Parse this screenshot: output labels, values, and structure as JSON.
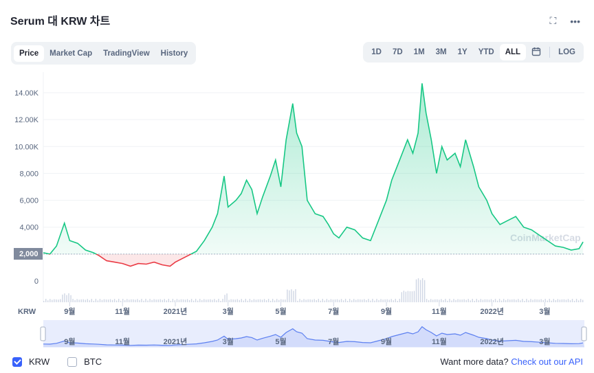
{
  "header": {
    "title": "Serum 대 KRW 차트",
    "expand_icon": "expand-icon",
    "more_icon": "more-icon"
  },
  "tabs": [
    "Price",
    "Market Cap",
    "TradingView",
    "History"
  ],
  "active_tab": "Price",
  "ranges": [
    "1D",
    "7D",
    "1M",
    "3M",
    "1Y",
    "YTD",
    "ALL"
  ],
  "active_range": "ALL",
  "calendar_icon": "calendar-icon",
  "log_label": "LOG",
  "watermark": "CoinMarketCap",
  "legend": {
    "krw": "KRW",
    "btc": "BTC"
  },
  "more_data": {
    "prefix": "Want more data?",
    "link": "Check out our API"
  },
  "axis_label": "KRW",
  "current_price_label": "2,000",
  "chart_data": {
    "type": "area",
    "y_ticks": [
      "0",
      "2,000",
      "4,000",
      "6,000",
      "8,000",
      "10.00K",
      "12.00K",
      "14.00K"
    ],
    "y_tick_values": [
      0,
      2000,
      4000,
      6000,
      8000,
      10000,
      12000,
      14000
    ],
    "x_ticks": [
      "9월",
      "11월",
      "2021년",
      "3월",
      "5월",
      "7월",
      "9월",
      "11월",
      "2022년",
      "3월"
    ],
    "x_tick_positions_month_index": [
      1,
      3,
      5,
      7,
      9,
      11,
      13,
      15,
      17,
      19
    ],
    "baseline": 2000,
    "colors": {
      "up": "#16c784",
      "down": "#ea3943",
      "navigator": "#5b7ff0"
    },
    "series": [
      {
        "name": "KRW",
        "points": [
          [
            0.0,
            2100
          ],
          [
            0.25,
            2000
          ],
          [
            0.5,
            2600
          ],
          [
            0.8,
            4300
          ],
          [
            1.0,
            3000
          ],
          [
            1.3,
            2800
          ],
          [
            1.6,
            2300
          ],
          [
            1.9,
            2100
          ],
          [
            2.1,
            1900
          ],
          [
            2.4,
            1500
          ],
          [
            2.7,
            1400
          ],
          [
            3.0,
            1300
          ],
          [
            3.3,
            1100
          ],
          [
            3.6,
            1300
          ],
          [
            3.9,
            1250
          ],
          [
            4.2,
            1400
          ],
          [
            4.5,
            1200
          ],
          [
            4.8,
            1100
          ],
          [
            5.0,
            1400
          ],
          [
            5.2,
            1600
          ],
          [
            5.5,
            1900
          ],
          [
            5.8,
            2200
          ],
          [
            6.1,
            3000
          ],
          [
            6.4,
            4000
          ],
          [
            6.6,
            5000
          ],
          [
            6.85,
            7800
          ],
          [
            7.0,
            5500
          ],
          [
            7.3,
            6000
          ],
          [
            7.5,
            6500
          ],
          [
            7.7,
            7500
          ],
          [
            7.9,
            6800
          ],
          [
            8.1,
            5000
          ],
          [
            8.3,
            6200
          ],
          [
            8.6,
            7800
          ],
          [
            8.8,
            9000
          ],
          [
            9.0,
            7000
          ],
          [
            9.2,
            10500
          ],
          [
            9.45,
            13200
          ],
          [
            9.6,
            11000
          ],
          [
            9.8,
            10000
          ],
          [
            10.0,
            6000
          ],
          [
            10.3,
            5000
          ],
          [
            10.6,
            4800
          ],
          [
            10.8,
            4200
          ],
          [
            11.0,
            3500
          ],
          [
            11.2,
            3200
          ],
          [
            11.5,
            4000
          ],
          [
            11.8,
            3800
          ],
          [
            12.1,
            3200
          ],
          [
            12.4,
            3000
          ],
          [
            12.7,
            4500
          ],
          [
            13.0,
            6000
          ],
          [
            13.2,
            7500
          ],
          [
            13.5,
            9000
          ],
          [
            13.8,
            10500
          ],
          [
            14.0,
            9500
          ],
          [
            14.2,
            11000
          ],
          [
            14.35,
            14700
          ],
          [
            14.5,
            12500
          ],
          [
            14.7,
            10500
          ],
          [
            14.9,
            8000
          ],
          [
            15.1,
            10000
          ],
          [
            15.3,
            9000
          ],
          [
            15.6,
            9500
          ],
          [
            15.8,
            8500
          ],
          [
            16.0,
            10500
          ],
          [
            16.3,
            8500
          ],
          [
            16.5,
            7000
          ],
          [
            16.8,
            6000
          ],
          [
            17.0,
            5000
          ],
          [
            17.3,
            4200
          ],
          [
            17.6,
            4500
          ],
          [
            17.9,
            4800
          ],
          [
            18.2,
            4000
          ],
          [
            18.5,
            3800
          ],
          [
            18.8,
            3400
          ],
          [
            19.1,
            3000
          ],
          [
            19.4,
            2600
          ],
          [
            19.7,
            2500
          ],
          [
            20.0,
            2300
          ],
          [
            20.3,
            2400
          ],
          [
            20.45,
            2900
          ]
        ]
      }
    ],
    "x_range_months": [
      0,
      20.5
    ],
    "ylim": [
      0,
      15000
    ]
  }
}
